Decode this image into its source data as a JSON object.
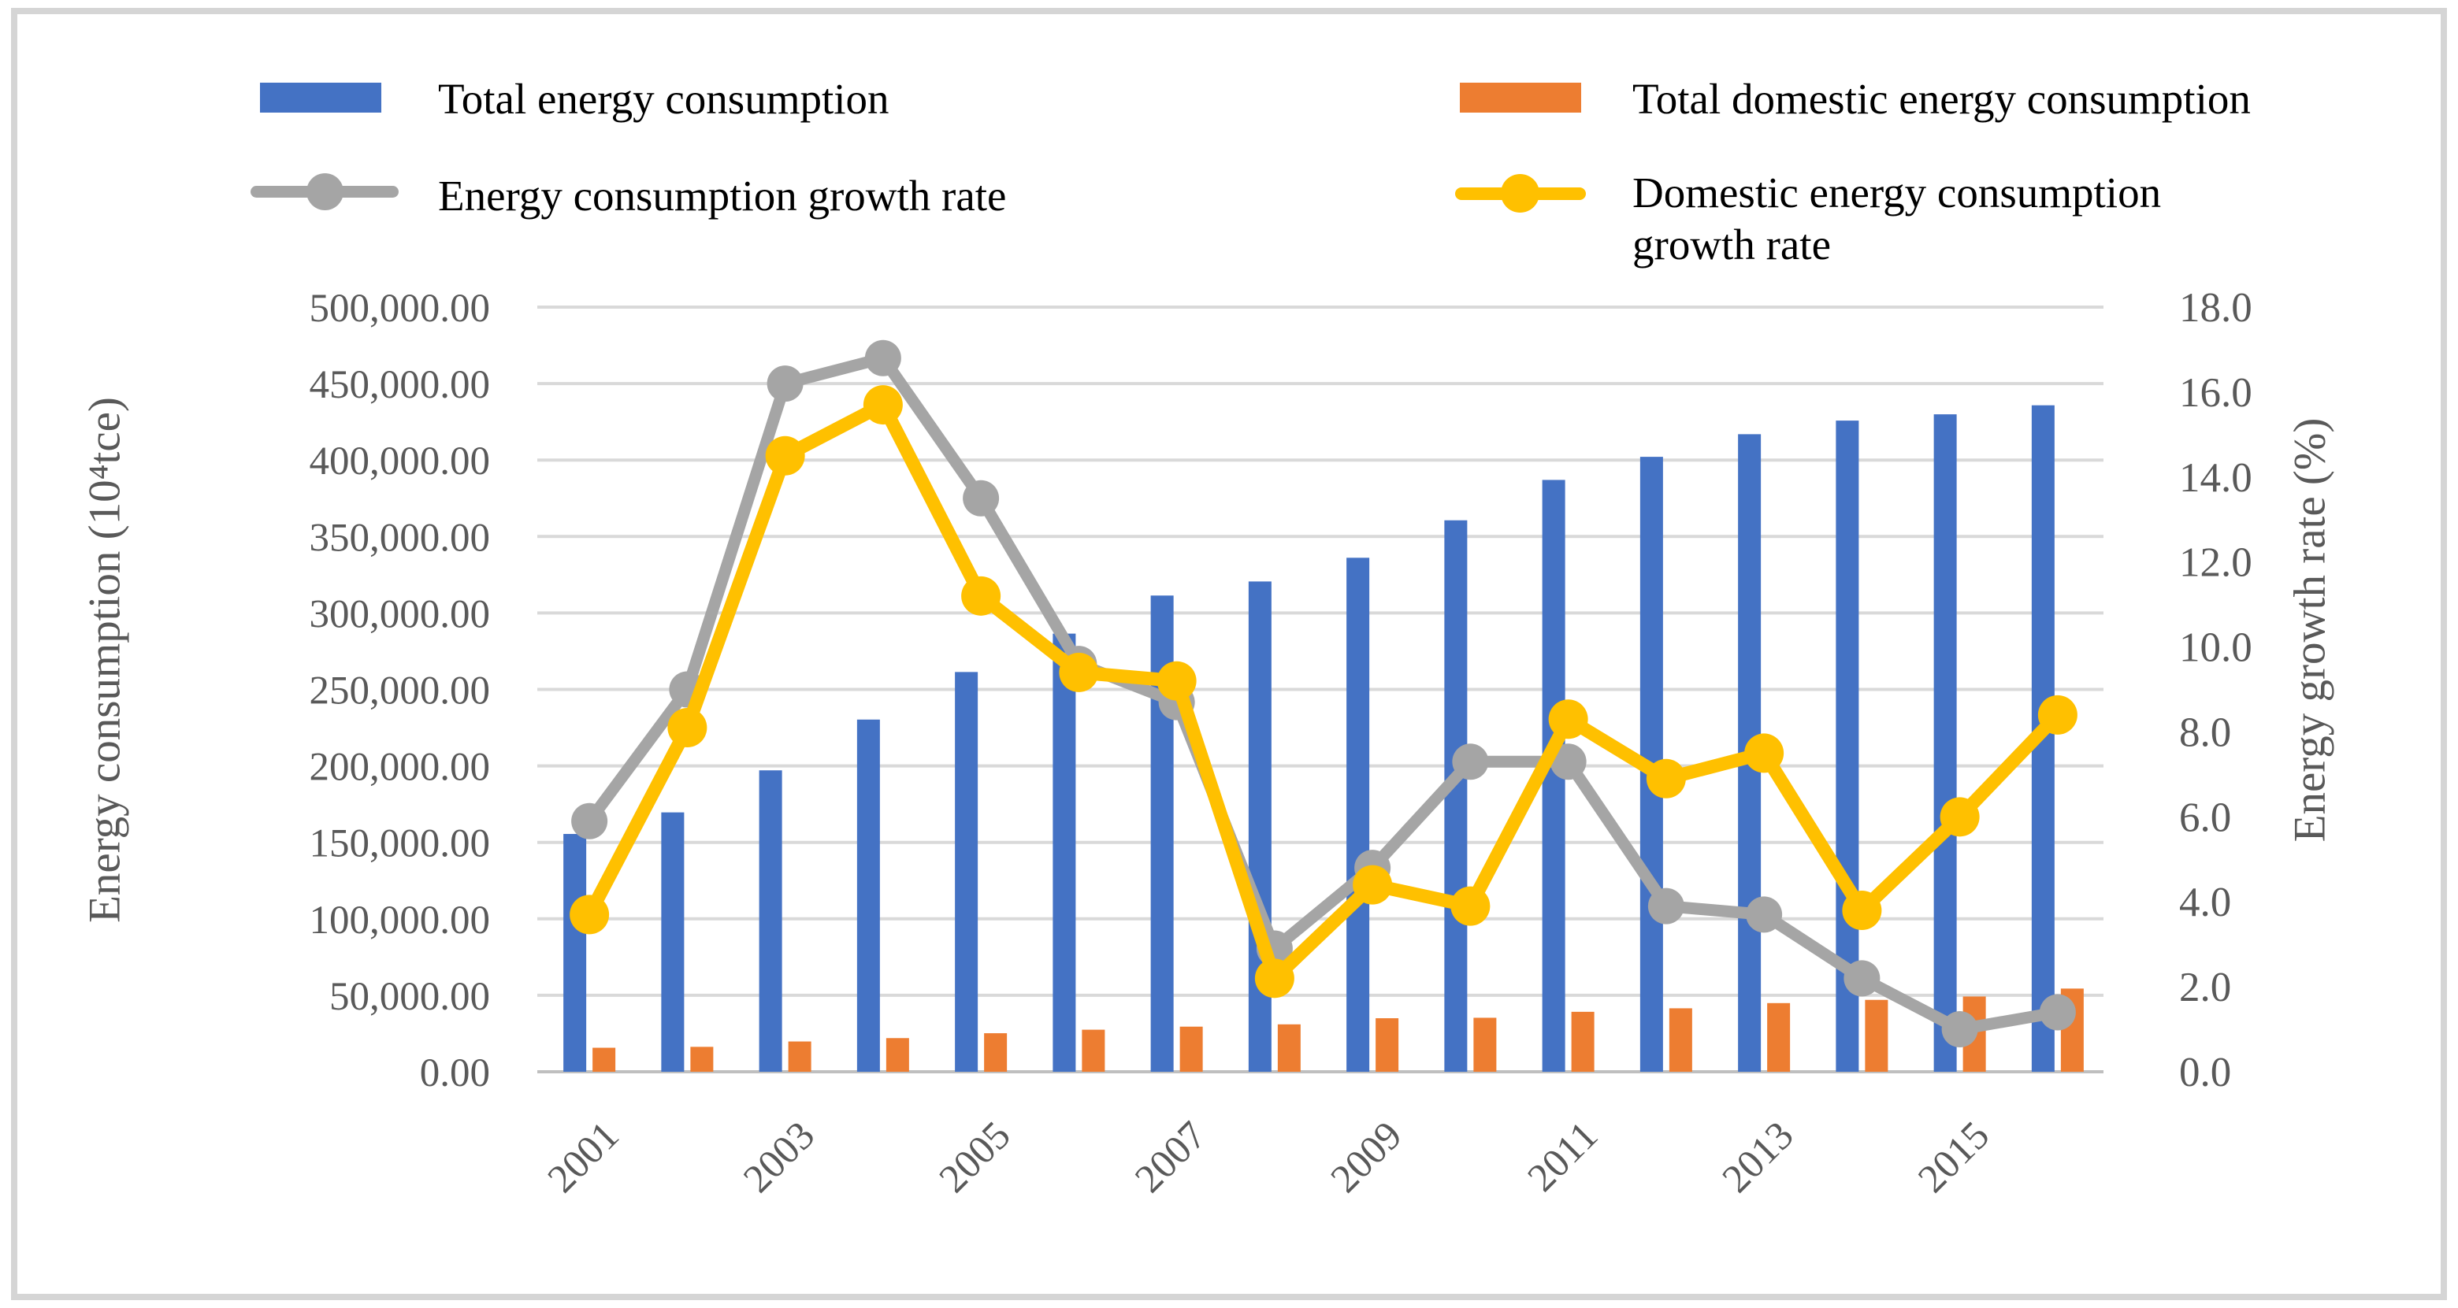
{
  "figure": {
    "background": "#ffffff",
    "border_color": "#d5d5d5",
    "text_color": "#595959",
    "gridline_color": "#d9d9d9",
    "axisline_color": "#bfbfbf"
  },
  "legend": {
    "position": "top",
    "items": [
      {
        "label": "Total energy consumption",
        "type": "bar",
        "color": "#4472C4"
      },
      {
        "label": "Energy consumption growth rate",
        "type": "line",
        "color": "#A5A5A5"
      },
      {
        "label": "Total domestic energy consumption",
        "type": "bar",
        "color": "#ED7D31"
      },
      {
        "label": "Domestic energy consumption growth rate",
        "type": "line",
        "color": "#FFC000"
      }
    ]
  },
  "chart_data": {
    "type": "bar",
    "subtype": "combo dual-axis bar+line",
    "categories": [
      "2001",
      "2002",
      "2003",
      "2004",
      "2005",
      "2006",
      "2007",
      "2008",
      "2009",
      "2010",
      "2011",
      "2012",
      "2013",
      "2014",
      "2015",
      "2016"
    ],
    "x_tick_labels_shown": [
      "2001",
      "2003",
      "2005",
      "2007",
      "2009",
      "2011",
      "2013",
      "2015"
    ],
    "series": [
      {
        "name": "Total energy consumption",
        "type": "bar",
        "axis": "left",
        "color": "#4472C4",
        "values": [
          155500,
          169600,
          197100,
          230300,
          261400,
          286500,
          311400,
          320600,
          336100,
          360600,
          387000,
          402100,
          416900,
          425800,
          429900,
          435800
        ]
      },
      {
        "name": "Total domestic energy consumption",
        "type": "bar",
        "axis": "left",
        "color": "#ED7D31",
        "values": [
          15700,
          16300,
          19800,
          22000,
          25200,
          27500,
          29500,
          31000,
          35000,
          35300,
          39200,
          41500,
          44900,
          47000,
          49200,
          54400
        ]
      },
      {
        "name": "Energy consumption growth rate",
        "type": "line",
        "axis": "right",
        "color": "#A5A5A5",
        "values": [
          5.9,
          9.0,
          16.2,
          16.8,
          13.5,
          9.6,
          8.7,
          2.9,
          4.8,
          7.3,
          7.3,
          3.9,
          3.7,
          2.2,
          1.0,
          1.4
        ]
      },
      {
        "name": "Domestic energy consumption growth rate",
        "type": "line",
        "axis": "right",
        "color": "#FFC000",
        "values": [
          3.7,
          8.1,
          14.5,
          15.7,
          11.2,
          9.4,
          9.2,
          2.2,
          4.4,
          3.9,
          8.3,
          6.9,
          7.5,
          3.8,
          6.0,
          8.4
        ]
      }
    ],
    "left_axis": {
      "title": "Energy consumption (10⁴tce)",
      "min": 0,
      "max": 500000,
      "step": 50000,
      "tick_labels": [
        "0.00",
        "50,000.00",
        "100,000.00",
        "150,000.00",
        "200,000.00",
        "250,000.00",
        "300,000.00",
        "350,000.00",
        "400,000.00",
        "450,000.00",
        "500,000.00"
      ]
    },
    "right_axis": {
      "title": "Energy growth rate (%)",
      "min": 0,
      "max": 18,
      "step": 2,
      "tick_labels": [
        "0.0",
        "2.0",
        "4.0",
        "6.0",
        "8.0",
        "10.0",
        "12.0",
        "14.0",
        "16.0",
        "18.0"
      ]
    },
    "grid": true,
    "legend_position": "top"
  }
}
